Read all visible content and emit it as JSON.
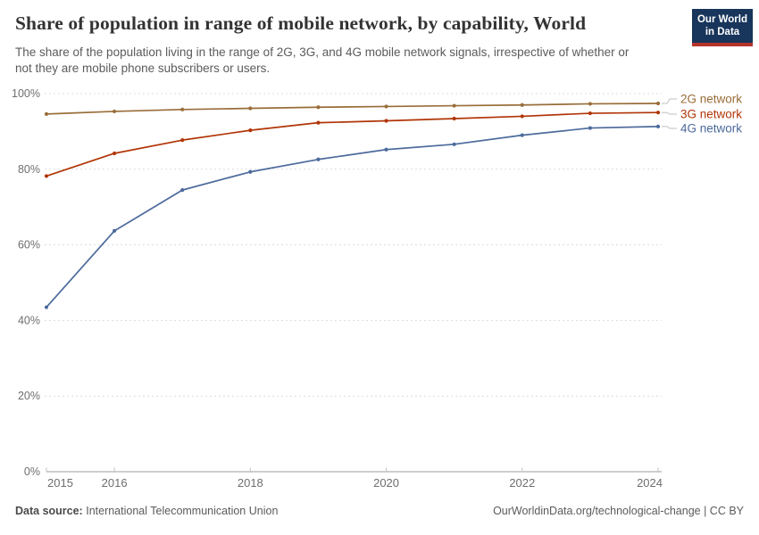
{
  "header": {
    "title": "Share of population in range of mobile network, by capability, World",
    "subtitle": "The share of the population living in the range of 2G, 3G, and 4G mobile network signals, irrespective of whether or not they are mobile phone subscribers or users.",
    "logo": {
      "line1": "Our World",
      "line2": "in Data",
      "bg_color": "#18355B",
      "bar_color": "#B5332A"
    }
  },
  "chart_data": {
    "type": "line",
    "x": [
      2015,
      2016,
      2017,
      2018,
      2019,
      2020,
      2021,
      2022,
      2023,
      2024
    ],
    "series": [
      {
        "name": "2G network",
        "color": "#996D39",
        "values": [
          94.6,
          95.3,
          95.8,
          96.1,
          96.4,
          96.6,
          96.8,
          97.0,
          97.3,
          97.4
        ]
      },
      {
        "name": "3G network",
        "color": "#B13507",
        "values": [
          78.2,
          84.2,
          87.7,
          90.3,
          92.3,
          92.8,
          93.4,
          94.0,
          94.8,
          95.0
        ]
      },
      {
        "name": "4G network",
        "color": "#4C6A9C",
        "values": [
          43.5,
          63.7,
          74.5,
          79.3,
          82.6,
          85.2,
          86.6,
          89.0,
          90.9,
          91.3
        ]
      }
    ],
    "title": "Share of population in range of mobile network, by capability, World",
    "xlabel": "",
    "ylabel": "",
    "ylim": [
      0,
      100
    ],
    "yticks": [
      0,
      20,
      40,
      60,
      80,
      100
    ],
    "ytick_suffix": "%",
    "xticks": [
      2015,
      2016,
      2018,
      2020,
      2022,
      2024
    ],
    "grid": "horizontal-dashed",
    "legend_position": "right",
    "colors": {
      "grid": "#dcdcdc",
      "axis": "#9e9e9e",
      "tick": "#c2c2c2",
      "tick_label": "#6e6e6e",
      "legend_connector": "#bfbfbf"
    }
  },
  "footer": {
    "source_label": "Data source:",
    "source_value": "International Telecommunication Union",
    "link": "OurWorldinData.org/technological-change | CC BY"
  }
}
